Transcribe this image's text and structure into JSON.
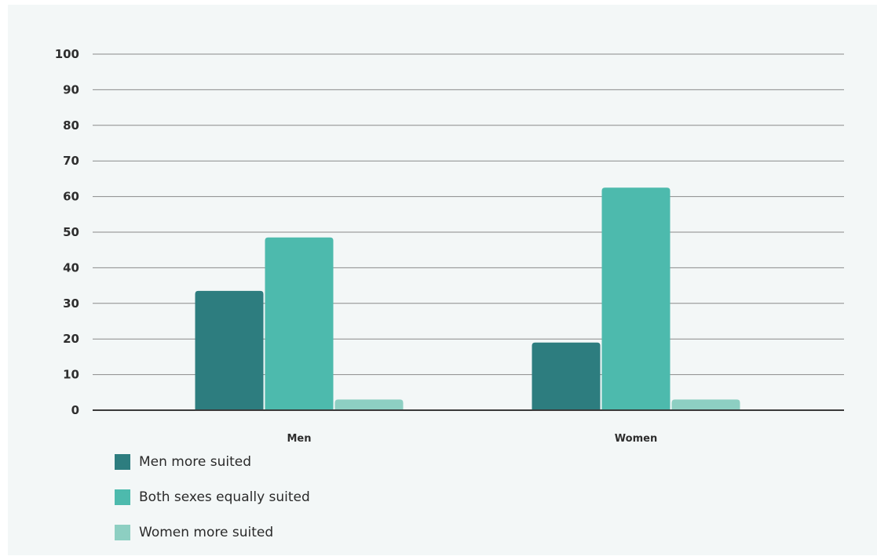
{
  "chart_data": {
    "type": "bar",
    "categories": [
      "Men",
      "Women"
    ],
    "series": [
      {
        "name": "Men more suited",
        "color": "#2d7d7f",
        "values": [
          33.5,
          19
        ]
      },
      {
        "name": "Both sexes equally suited",
        "color": "#4dbaad",
        "values": [
          48.5,
          62.5
        ]
      },
      {
        "name": "Women more suited",
        "color": "#8dcfc2",
        "values": [
          3,
          3
        ]
      }
    ],
    "yticks": [
      "0",
      "10",
      "20",
      "30",
      "40",
      "50",
      "60",
      "70",
      "80",
      "90",
      "100"
    ],
    "ylim": [
      0,
      100
    ],
    "title": "",
    "xlabel": "",
    "ylabel": "",
    "grid": true,
    "legend_position": "bottom-left"
  },
  "colors": {
    "background": "#f3f7f7",
    "gridline": "#8a8a8a",
    "baseline": "#3a3a3a"
  }
}
